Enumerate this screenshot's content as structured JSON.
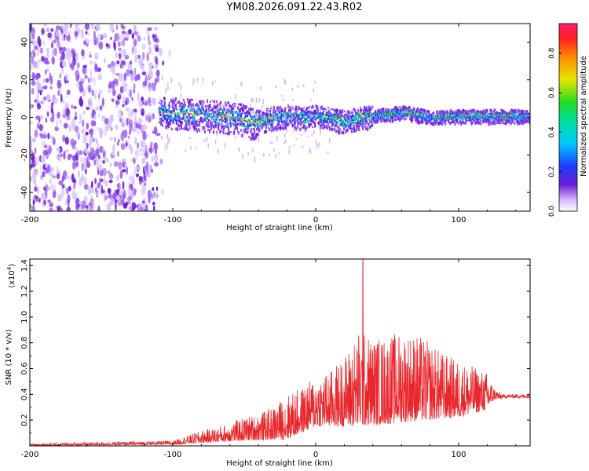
{
  "title": "YM08.2026.091.22.43.R02",
  "colors": {
    "signal": "#e8262b",
    "purple": "#6a1fd0",
    "axis": "#000000"
  },
  "chart_data": [
    {
      "type": "heatmap",
      "title": "YM08.2026.091.22.43.R02",
      "xlabel": "Height of straight line (km)",
      "ylabel": "Frequency (Hz)",
      "xlim": [
        -200,
        150
      ],
      "ylim": [
        -50,
        50
      ],
      "xticks": [
        -200,
        -100,
        0,
        100
      ],
      "xtick_labels": [
        "-200",
        "-100",
        "0",
        "100"
      ],
      "yticks": [
        -40,
        -20,
        0,
        20,
        40
      ],
      "ytick_labels": [
        "-40",
        "-20",
        "0",
        "20",
        "40"
      ],
      "noise_region_x": [
        -200,
        -110
      ],
      "signal_band": {
        "x_start": -110,
        "x_end": 150,
        "center_track": [
          [
            -110,
            3
          ],
          [
            -90,
            2
          ],
          [
            -70,
            1
          ],
          [
            -60,
            0
          ],
          [
            -50,
            -1
          ],
          [
            -45,
            -3
          ],
          [
            -40,
            -2
          ],
          [
            -30,
            0
          ],
          [
            -20,
            1
          ],
          [
            -10,
            0
          ],
          [
            0,
            1
          ],
          [
            10,
            0
          ],
          [
            20,
            -2
          ],
          [
            30,
            0
          ],
          [
            40,
            1
          ],
          [
            50,
            2
          ],
          [
            60,
            3
          ],
          [
            70,
            2
          ],
          [
            80,
            0
          ],
          [
            90,
            1
          ],
          [
            100,
            1
          ],
          [
            110,
            1
          ],
          [
            120,
            1
          ],
          [
            130,
            1
          ],
          [
            150,
            1
          ]
        ]
      },
      "colorbar": {
        "label": "Normalized spectral amplitude",
        "range": [
          0.0,
          0.95
        ],
        "ticks": [
          0.0,
          0.2,
          0.4,
          0.6,
          0.8
        ],
        "tick_labels": [
          "0.0",
          "0.2",
          "0.4",
          "0.6",
          "0.8"
        ]
      }
    },
    {
      "type": "line",
      "xlabel": "Height of straight line (km)",
      "ylabel": "SNR (10 * v/v)",
      "scale_label": "(x10",
      "scale_exp": "4",
      "scale_close": ")",
      "xlim": [
        -200,
        150
      ],
      "ylim": [
        0,
        1.45
      ],
      "xticks": [
        -200,
        -100,
        0,
        100
      ],
      "xtick_labels": [
        "-200",
        "-100",
        "0",
        "100"
      ],
      "yticks": [
        0.2,
        0.4,
        0.6,
        0.8,
        1.0,
        1.2,
        1.4
      ],
      "ytick_labels": [
        "0.2",
        "0.4",
        "0.6",
        "0.8",
        "1.0",
        "1.2",
        "1.4"
      ],
      "series": [
        {
          "name": "SNR",
          "envelope": [
            [
              -200,
              0.02
            ],
            [
              -100,
              0.04
            ],
            [
              -90,
              0.08
            ],
            [
              -80,
              0.12
            ],
            [
              -70,
              0.14
            ],
            [
              -60,
              0.18
            ],
            [
              -50,
              0.22
            ],
            [
              -40,
              0.25
            ],
            [
              -30,
              0.3
            ],
            [
              -20,
              0.4
            ],
            [
              -10,
              0.45
            ],
            [
              0,
              0.55
            ],
            [
              10,
              0.58
            ],
            [
              20,
              0.7
            ],
            [
              30,
              0.9
            ],
            [
              40,
              0.85
            ],
            [
              50,
              0.85
            ],
            [
              60,
              0.9
            ],
            [
              70,
              0.88
            ],
            [
              80,
              0.8
            ],
            [
              90,
              0.72
            ],
            [
              100,
              0.66
            ],
            [
              110,
              0.62
            ],
            [
              120,
              0.57
            ],
            [
              125,
              0.45
            ],
            [
              130,
              0.41
            ],
            [
              150,
              0.4
            ]
          ],
          "floor": [
            [
              -200,
              0.0
            ],
            [
              -100,
              0.01
            ],
            [
              -50,
              0.04
            ],
            [
              -20,
              0.05
            ],
            [
              0,
              0.15
            ],
            [
              30,
              0.15
            ],
            [
              60,
              0.18
            ],
            [
              100,
              0.22
            ],
            [
              120,
              0.28
            ],
            [
              125,
              0.36
            ],
            [
              150,
              0.37
            ]
          ],
          "peak": {
            "x": 33,
            "y": 1.45
          },
          "plateau": 0.385
        }
      ]
    }
  ]
}
